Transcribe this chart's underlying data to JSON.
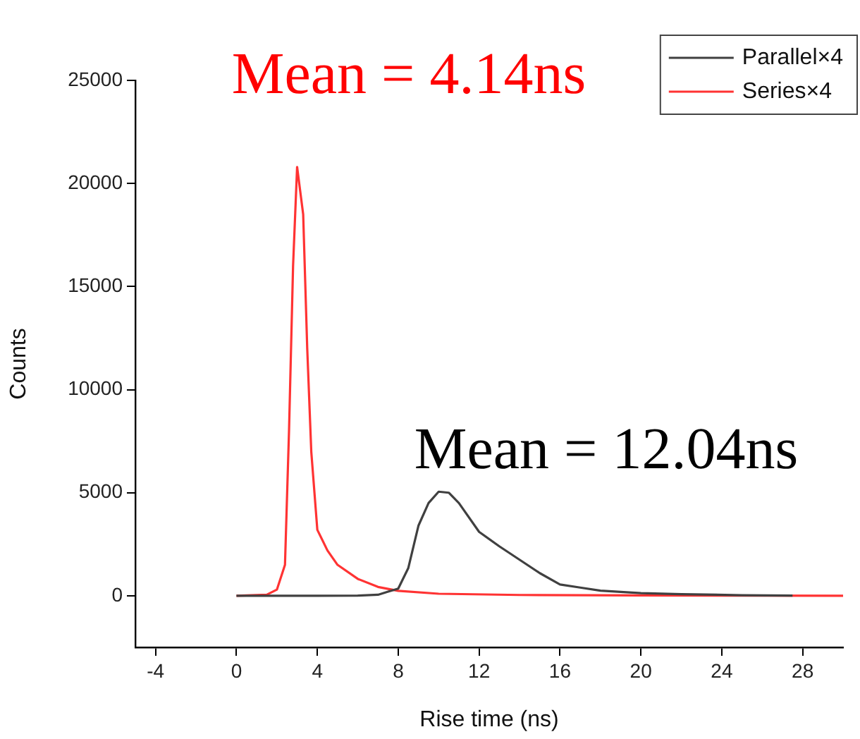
{
  "chart_data": {
    "type": "line",
    "xlabel": "Rise time (ns)",
    "ylabel": "Counts",
    "xlim": [
      -5,
      30
    ],
    "xticks": [
      -4,
      0,
      4,
      8,
      12,
      16,
      20,
      24,
      28
    ],
    "ylim": [
      -2500,
      25000
    ],
    "yticks": [
      0,
      5000,
      10000,
      15000,
      20000,
      25000
    ],
    "grid": false,
    "legend": "top right",
    "marker": "none",
    "line_style": "solid",
    "series": [
      {
        "name": "Parallel×4",
        "color": "#404040",
        "x": [
          0,
          2,
          4,
          6,
          7,
          7.5,
          8,
          8.5,
          9,
          9.5,
          10,
          10.5,
          11,
          12,
          13,
          14,
          15,
          16,
          17,
          18,
          20,
          22,
          25,
          27.5
        ],
        "values": [
          0,
          0,
          0,
          10,
          50,
          200,
          350,
          1350,
          3400,
          4500,
          5050,
          5000,
          4500,
          3100,
          2400,
          1750,
          1100,
          550,
          400,
          250,
          130,
          80,
          30,
          10
        ]
      },
      {
        "name": "Series×4",
        "color": "#ff3333",
        "x": [
          0,
          1.5,
          2,
          2.4,
          2.6,
          2.8,
          3,
          3.3,
          3.5,
          3.7,
          4,
          4.5,
          5,
          6,
          7,
          8,
          10,
          14,
          20,
          25,
          30
        ],
        "values": [
          0,
          50,
          300,
          1500,
          8000,
          16000,
          20800,
          18500,
          12000,
          7000,
          3200,
          2200,
          1500,
          820,
          430,
          240,
          100,
          40,
          20,
          10,
          0
        ]
      }
    ],
    "annotations": [
      "Mean = 4.14ns",
      "Mean = 12.04ns"
    ]
  }
}
